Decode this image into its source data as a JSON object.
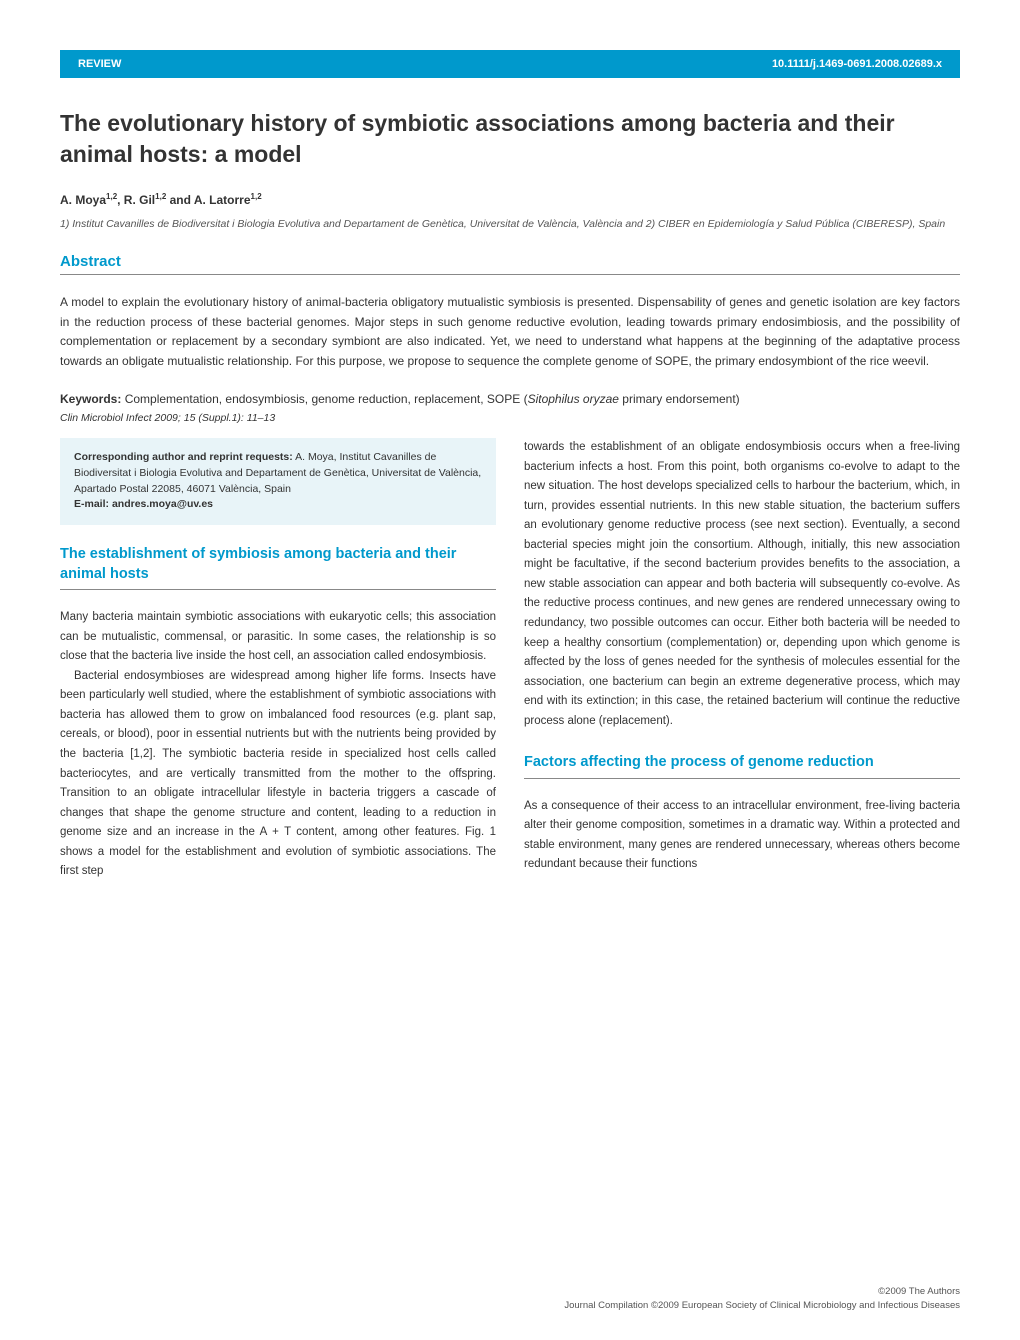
{
  "header": {
    "section_label": "REVIEW",
    "doi": "10.1111/j.1469-0691.2008.02689.x",
    "bar_bg_color": "#0099cc",
    "bar_text_color": "#ffffff"
  },
  "title": "The evolutionary history of symbiotic associations among bacteria and their animal hosts: a model",
  "authors_html": "A. Moya<sup>1,2</sup>, R. Gil<sup>1,2</sup> and A. Latorre<sup>1,2</sup>",
  "affiliations": "1) Institut Cavanilles de Biodiversitat i Biologia Evolutiva and Departament de Genètica, Universitat de València, València and 2) CIBER en Epidemiología y Salud Pública (CIBERESP), Spain",
  "abstract": {
    "heading": "Abstract",
    "text": "A model to explain the evolutionary history of animal-bacteria obligatory mutualistic symbiosis is presented. Dispensability of genes and genetic isolation are key factors in the reduction process of these bacterial genomes. Major steps in such genome reductive evolution, leading towards primary endosimbiosis, and the possibility of complementation or replacement by a secondary symbiont are also indicated. Yet, we need to understand what happens at the beginning of the adaptative process towards an obligate mutualistic relationship. For this purpose, we propose to sequence the complete genome of SOPE, the primary endosymbiont of the rice weevil."
  },
  "keywords": {
    "label": "Keywords:",
    "text": " Complementation, endosymbiosis, genome reduction, replacement, SOPE (",
    "italic": "Sitophilus oryzae",
    "text2": " primary endorsement)"
  },
  "citation": "Clin Microbiol Infect 2009; 15 (Suppl.1): 11–13",
  "corresponding": {
    "label": "Corresponding author and reprint requests:",
    "text": " A. Moya, Institut Cavanilles de Biodiversitat i Biologia Evolutiva and Departament de Genètica, Universitat de València, Apartado Postal 22085, 46071 València, Spain",
    "email_label": "E-mail: ",
    "email": "andres.moya@uv.es",
    "box_bg_color": "#e8f4f8"
  },
  "section1": {
    "heading": "The establishment of symbiosis among bacteria and their animal hosts",
    "p1": "Many bacteria maintain symbiotic associations with eukaryotic cells; this association can be mutualistic, commensal, or parasitic. In some cases, the relationship is so close that the bacteria live inside the host cell, an association called endosymbiosis.",
    "p2": "Bacterial endosymbioses are widespread among higher life forms. Insects have been particularly well studied, where the establishment of symbiotic associations with bacteria has allowed them to grow on imbalanced food resources (e.g. plant sap, cereals, or blood), poor in essential nutrients but with the nutrients being provided by the bacteria [1,2]. The symbiotic bacteria reside in specialized host cells called bacteriocytes, and are vertically transmitted from the mother to the offspring. Transition to an obligate intracellular lifestyle in bacteria triggers a cascade of changes that shape the genome structure and content, leading to a reduction in genome size and an increase in the A + T content, among other features. Fig. 1 shows a model for the establishment and evolution of symbiotic associations. The first step"
  },
  "col2_text": "towards the establishment of an obligate endosymbiosis occurs when a free-living bacterium infects a host. From this point, both organisms co-evolve to adapt to the new situation. The host develops specialized cells to harbour the bacterium, which, in turn, provides essential nutrients. In this new stable situation, the bacterium suffers an evolutionary genome reductive process (see next section). Eventually, a second bacterial species might join the consortium. Although, initially, this new association might be facultative, if the second bacterium provides benefits to the association, a new stable association can appear and both bacteria will subsequently co-evolve. As the reductive process continues, and new genes are rendered unnecessary owing to redundancy, two possible outcomes can occur. Either both bacteria will be needed to keep a healthy consortium (complementation) or, depending upon which genome is affected by the loss of genes needed for the synthesis of molecules essential for the association, one bacterium can begin an extreme degenerative process, which may end with its extinction; in this case, the retained bacterium will continue the reductive process alone (replacement).",
  "section2": {
    "heading": "Factors affecting the process of genome reduction",
    "p1": "As a consequence of their access to an intracellular environment, free-living bacteria alter their genome composition, sometimes in a dramatic way. Within a protected and stable environment, many genes are rendered unnecessary, whereas others become redundant because their functions"
  },
  "footer": {
    "copyright": "©2009 The Authors",
    "journal": "Journal Compilation ©2009 European Society of Clinical Microbiology and Infectious Diseases"
  },
  "colors": {
    "accent": "#0099cc",
    "text": "#333333",
    "background": "#ffffff",
    "rule": "#888888"
  }
}
